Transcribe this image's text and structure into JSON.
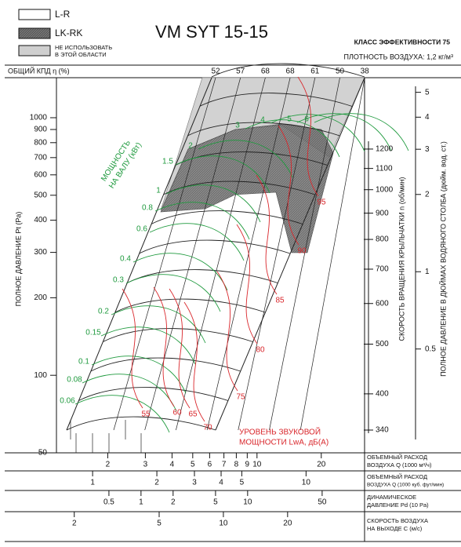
{
  "chart_data": {
    "type": "nomogram",
    "title": "VM SYT 15-15",
    "efficiency_class": "КЛАСС ЭФФЕКТИВНОСТИ 75",
    "air_density": "ПЛОТНОСТЬ ВОЗДУХА: 1,2 кг/м³",
    "legend": [
      {
        "name": "L-R",
        "color": "#ffffff"
      },
      {
        "name": "LK-RK",
        "color": "#5a5a5a"
      },
      {
        "name": "НЕ ИСПОЛЬЗОВАТЬ",
        "name2": "В ЭТОЙ ОБЛАСТИ",
        "color": "#cfcfcf"
      }
    ],
    "efficiency_label": "ОБЩИЙ КПД η (%)",
    "efficiency_values": [
      52,
      57,
      68,
      68,
      61,
      50,
      38
    ],
    "ylabel": "ПОЛНОЕ ДАВЛЕНИЕ Pt (Pa)",
    "log_y": true,
    "ylim": [
      50,
      1430
    ],
    "yticks": [
      50,
      100,
      200,
      300,
      400,
      500,
      600,
      700,
      800,
      900,
      1000
    ],
    "xlabel": [
      "ОБЪЕМНЫЙ РАСХОД",
      "ВОЗДУХА Q (1000 м³/ч)"
    ],
    "log_x": true,
    "xlim": [
      1.15,
      31.9
    ],
    "xticks": [
      2,
      3,
      4,
      5,
      6,
      7,
      8,
      9,
      10,
      20
    ],
    "rpm_label": "СКОРОСТЬ ВРАЩЕНИЯ КРЫЛЬЧАТКИ  n (об/мин)",
    "rpm_lim": [
      307,
      1653
    ],
    "rpm_ticks": [
      340,
      400,
      500,
      600,
      700,
      800,
      900,
      1000,
      1100,
      1200
    ],
    "inch_label": "ПОЛНОЕ ДАВЛЕНИЕ В ДЮЙМАХ ВОДЯНОГО СТОЛБА (дюйм. вод. ст.)",
    "inch_lim": [
      0.197,
      5.7
    ],
    "inch_ticks": [
      0.5,
      1,
      2,
      3,
      4,
      5
    ],
    "power_label": [
      "МОЩНОСТЬ",
      "НА ВАЛУ (кВт)"
    ],
    "power_color": "#1f9a3e",
    "power_values": [
      0.06,
      0.08,
      0.1,
      0.15,
      0.2,
      0.3,
      0.4,
      0.6,
      0.8,
      1,
      1.5,
      2,
      3,
      4,
      5,
      6
    ],
    "sound_label": [
      "УРОВЕНЬ ЗВУКОВОЙ",
      "МОЩНОСТИ LwA, дБ(A)"
    ],
    "sound_color": "#d9262b",
    "sound_values": [
      55,
      60,
      65,
      70,
      75,
      80,
      85,
      90,
      95
    ],
    "cfm_label": [
      "ОБЪЕМНЫЙ РАСХОД",
      "ВОЗДУХА Q (1000 куб. фут/мин)"
    ],
    "cfm_lim": [
      0.677,
      18.8
    ],
    "cfm_ticks": [
      1,
      2,
      3,
      4,
      5,
      10
    ],
    "pd_label": [
      "ДИНАМИЧЕСКОЕ",
      "ДАВЛЕНИЕ Pd (10 Pa)"
    ],
    "pd_lim": [
      0.161,
      125
    ],
    "pd_ticks": [
      0.5,
      1,
      2,
      5,
      10,
      50
    ],
    "c_label": [
      "СКОРОСТЬ ВОЗДУХА",
      "НА ВЫХОДЕ C (м/с)"
    ],
    "c_lim": [
      1.65,
      45.9
    ],
    "c_ticks": [
      2,
      5,
      10,
      20
    ]
  }
}
